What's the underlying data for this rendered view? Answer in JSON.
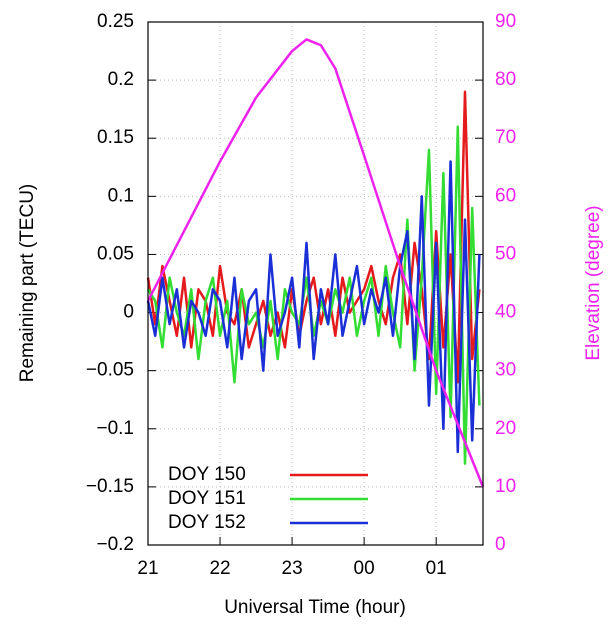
{
  "chart_data": {
    "type": "line",
    "xlabel": "Universal Time (hour)",
    "ylabel": "Remaining part (TECU)",
    "y2label": "Elevation (degree)",
    "x": [
      21.0,
      21.1,
      21.2,
      21.3,
      21.4,
      21.5,
      21.6,
      21.7,
      21.8,
      21.9,
      22.0,
      22.1,
      22.2,
      22.3,
      22.4,
      22.5,
      22.6,
      22.7,
      22.8,
      22.9,
      23.0,
      23.1,
      23.2,
      23.3,
      23.4,
      23.5,
      23.6,
      23.7,
      23.8,
      23.9,
      24.0,
      24.1,
      24.2,
      24.3,
      24.4,
      24.5,
      24.6,
      24.7,
      24.8,
      24.9,
      25.0,
      25.1,
      25.2,
      25.3,
      25.4,
      25.5,
      25.6
    ],
    "series": [
      {
        "name": "DOY 150",
        "color": "#e41a1c",
        "values": [
          0.03,
          -0.01,
          0.04,
          0.01,
          -0.02,
          0.03,
          -0.03,
          0.02,
          0.01,
          -0.02,
          0.04,
          0.0,
          -0.01,
          0.02,
          -0.03,
          -0.01,
          0.01,
          -0.02,
          0.0,
          -0.03,
          0.02,
          -0.02,
          0.01,
          0.03,
          -0.01,
          0.02,
          -0.02,
          0.03,
          0.0,
          0.01,
          0.02,
          0.04,
          0.01,
          -0.01,
          0.03,
          0.05,
          -0.01,
          0.06,
          0.02,
          -0.04,
          0.07,
          -0.03,
          0.05,
          -0.06,
          0.19,
          -0.04,
          0.02
        ]
      },
      {
        "name": "DOY 151",
        "color": "#33dd33",
        "values": [
          0.02,
          0.01,
          -0.03,
          0.03,
          0.0,
          -0.02,
          0.02,
          -0.04,
          0.01,
          0.03,
          -0.02,
          0.01,
          -0.06,
          0.02,
          -0.01,
          0.0,
          -0.03,
          0.01,
          -0.04,
          0.02,
          0.0,
          -0.01,
          0.03,
          -0.02,
          0.01,
          -0.01,
          0.02,
          0.0,
          0.03,
          -0.02,
          0.01,
          0.03,
          -0.02,
          0.04,
          0.0,
          -0.03,
          0.08,
          -0.05,
          0.03,
          0.14,
          -0.07,
          0.12,
          -0.09,
          0.16,
          -0.13,
          0.09,
          -0.08
        ]
      },
      {
        "name": "DOY 152",
        "color": "#1a2fd6",
        "values": [
          0.01,
          -0.02,
          0.03,
          -0.01,
          0.02,
          -0.03,
          0.01,
          0.0,
          -0.02,
          0.02,
          0.01,
          -0.03,
          0.03,
          -0.04,
          0.01,
          0.02,
          -0.05,
          0.05,
          -0.02,
          0.0,
          0.03,
          -0.03,
          0.06,
          -0.04,
          0.02,
          -0.01,
          0.05,
          -0.02,
          0.01,
          0.04,
          -0.01,
          0.02,
          0.0,
          0.03,
          -0.02,
          0.04,
          0.07,
          -0.04,
          0.1,
          -0.08,
          0.06,
          -0.1,
          0.13,
          -0.12,
          0.08,
          -0.11,
          0.05
        ]
      }
    ],
    "elevation": {
      "axis": "y2",
      "color": "#ee22ee",
      "x": [
        21.0,
        21.5,
        22.0,
        22.5,
        23.0,
        23.2,
        23.4,
        23.6,
        24.0,
        24.5,
        25.0,
        25.65
      ],
      "values": [
        42,
        54,
        66,
        77,
        85,
        87,
        86,
        82,
        67,
        48,
        30,
        10
      ]
    },
    "xlim": [
      21,
      25.65
    ],
    "xticks": [
      21,
      22,
      23,
      {
        "value": 24,
        "label": "00"
      },
      {
        "value": 25,
        "label": "01"
      }
    ],
    "ylim": [
      -0.2,
      0.25
    ],
    "yticks": [
      {
        "value": -0.2,
        "label": "−0.2"
      },
      {
        "value": -0.15,
        "label": "−0.15"
      },
      {
        "value": -0.1,
        "label": "−0.1"
      },
      {
        "value": -0.05,
        "label": "−0.05"
      },
      0,
      0.05,
      0.1,
      0.15,
      0.2,
      0.25
    ],
    "y2lim": [
      0,
      90
    ],
    "y2ticks": [
      0,
      10,
      20,
      30,
      40,
      50,
      60,
      70,
      80,
      90
    ],
    "grid": true,
    "legend": "bottom-left"
  }
}
